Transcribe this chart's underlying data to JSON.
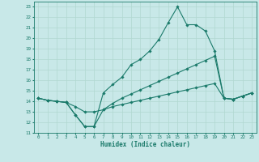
{
  "xlabel": "Humidex (Indice chaleur)",
  "bg_color": "#c8e8e8",
  "grid_color": "#b0d8d0",
  "line_color": "#1a7a6a",
  "xlim": [
    -0.5,
    23.5
  ],
  "ylim": [
    11,
    23.5
  ],
  "yticks": [
    11,
    12,
    13,
    14,
    15,
    16,
    17,
    18,
    19,
    20,
    21,
    22,
    23
  ],
  "xticks": [
    0,
    1,
    2,
    3,
    4,
    5,
    6,
    7,
    8,
    9,
    10,
    11,
    12,
    13,
    14,
    15,
    16,
    17,
    18,
    19,
    20,
    21,
    22,
    23
  ],
  "line1_x": [
    0,
    1,
    2,
    3,
    4,
    5,
    6,
    7,
    8,
    9,
    10,
    11,
    12,
    13,
    14,
    15,
    16,
    17,
    18,
    19,
    20,
    21,
    22,
    23
  ],
  "line1_y": [
    14.3,
    14.1,
    14.0,
    13.9,
    12.7,
    11.6,
    11.6,
    14.8,
    15.6,
    16.3,
    17.5,
    18.0,
    18.8,
    19.9,
    21.5,
    23.0,
    21.3,
    21.3,
    20.7,
    18.8,
    14.3,
    14.2,
    14.5,
    14.8
  ],
  "line2_x": [
    0,
    1,
    2,
    3,
    4,
    5,
    6,
    7,
    8,
    9,
    10,
    11,
    12,
    13,
    14,
    15,
    16,
    17,
    18,
    19,
    20,
    21,
    22,
    23
  ],
  "line2_y": [
    14.3,
    14.1,
    14.0,
    13.9,
    12.7,
    11.6,
    11.6,
    13.2,
    13.8,
    14.3,
    14.7,
    15.1,
    15.5,
    15.9,
    16.3,
    16.7,
    17.1,
    17.5,
    17.9,
    18.3,
    14.3,
    14.2,
    14.5,
    14.8
  ],
  "line3_x": [
    0,
    1,
    2,
    3,
    4,
    5,
    6,
    7,
    8,
    9,
    10,
    11,
    12,
    13,
    14,
    15,
    16,
    17,
    18,
    19,
    20,
    21,
    22,
    23
  ],
  "line3_y": [
    14.3,
    14.1,
    14.0,
    13.9,
    13.5,
    13.0,
    13.0,
    13.2,
    13.5,
    13.7,
    13.9,
    14.1,
    14.3,
    14.5,
    14.7,
    14.9,
    15.1,
    15.3,
    15.5,
    15.7,
    14.3,
    14.2,
    14.5,
    14.8
  ]
}
